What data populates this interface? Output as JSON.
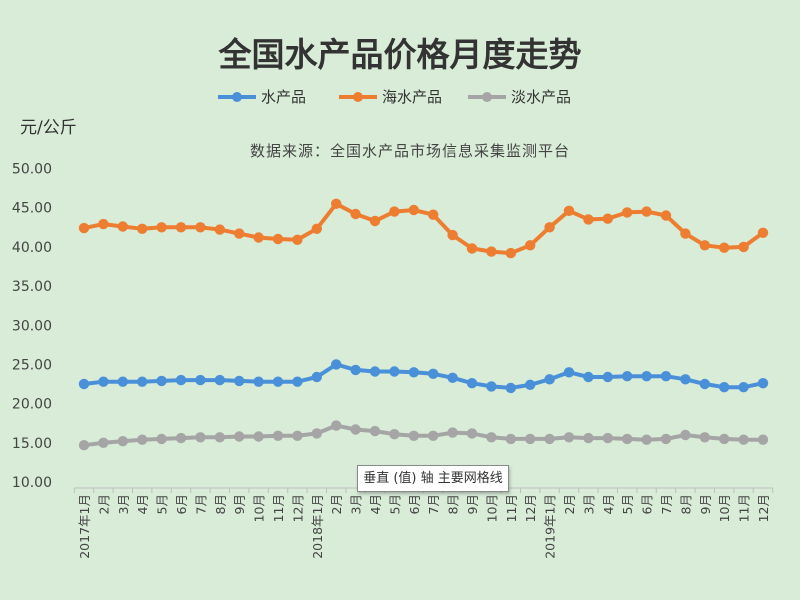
{
  "chart_data": {
    "type": "line",
    "title": "全国水产品价格月度走势",
    "ylabel": "元/公斤",
    "source": "数据来源：全国水产品市场信息采集监测平台",
    "ylim": [
      10,
      50
    ],
    "yticks": [
      "50.00",
      "45.00",
      "40.00",
      "35.00",
      "30.00",
      "25.00",
      "20.00",
      "15.00",
      "10.00"
    ],
    "grid": false,
    "legend_position": "top",
    "categories": [
      "2017年1月",
      "2月",
      "3月",
      "4月",
      "5月",
      "6月",
      "7月",
      "8月",
      "9月",
      "10月",
      "11月",
      "12月",
      "2018年1月",
      "2月",
      "3月",
      "4月",
      "5月",
      "6月",
      "7月",
      "8月",
      "9月",
      "10月",
      "11月",
      "12月",
      "2019年1月",
      "2月",
      "3月",
      "4月",
      "5月",
      "6月",
      "7月",
      "8月",
      "9月",
      "10月",
      "11月",
      "12月"
    ],
    "series": [
      {
        "name": "水产品",
        "color": "#4a90d9",
        "values": [
          22.5,
          22.8,
          22.8,
          22.8,
          22.9,
          23.0,
          23.0,
          23.0,
          22.9,
          22.8,
          22.8,
          22.8,
          23.4,
          25.0,
          24.3,
          24.1,
          24.1,
          24.0,
          23.8,
          23.3,
          22.6,
          22.2,
          22.0,
          22.4,
          23.1,
          24.0,
          23.4,
          23.4,
          23.5,
          23.5,
          23.5,
          23.1,
          22.5,
          22.1,
          22.1,
          22.6
        ]
      },
      {
        "name": "海水产品",
        "color": "#ed7d31",
        "values": [
          42.4,
          42.9,
          42.6,
          42.3,
          42.5,
          42.5,
          42.5,
          42.2,
          41.7,
          41.2,
          41.0,
          40.9,
          42.3,
          45.5,
          44.2,
          43.3,
          44.5,
          44.7,
          44.1,
          41.5,
          39.8,
          39.4,
          39.2,
          40.2,
          42.5,
          44.6,
          43.5,
          43.6,
          44.4,
          44.5,
          44.0,
          41.7,
          40.2,
          39.9,
          40.0,
          41.8
        ]
      },
      {
        "name": "淡水产品",
        "color": "#a5a5a5",
        "values": [
          14.7,
          15.0,
          15.2,
          15.4,
          15.5,
          15.6,
          15.7,
          15.7,
          15.8,
          15.8,
          15.9,
          15.9,
          16.2,
          17.2,
          16.7,
          16.5,
          16.1,
          15.9,
          15.9,
          16.3,
          16.2,
          15.7,
          15.5,
          15.5,
          15.5,
          15.7,
          15.6,
          15.6,
          15.5,
          15.4,
          15.5,
          16.0,
          15.7,
          15.5,
          15.4,
          15.4
        ]
      }
    ]
  },
  "tooltip": {
    "text": "垂直 (值) 轴 主要网格线"
  }
}
